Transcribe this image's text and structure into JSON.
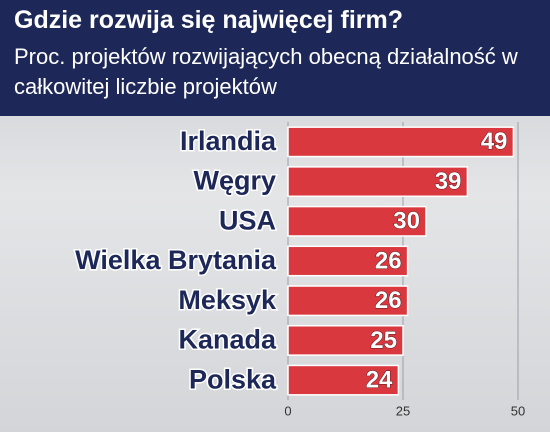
{
  "chart_data": {
    "type": "bar",
    "orientation": "horizontal",
    "title": "Gdzie rozwija się najwięcej firm?",
    "subtitle": "Proc. projektów rozwijających obecną działalność w całkowitej liczbie projektów",
    "categories": [
      "Irlandia",
      "Węgry",
      "USA",
      "Wielka Brytania",
      "Meksyk",
      "Kanada",
      "Polska"
    ],
    "values": [
      49,
      39,
      30,
      26,
      26,
      25,
      24
    ],
    "color": "#d9383f",
    "xlim": [
      0,
      50
    ],
    "xticks": [
      0,
      25,
      50
    ],
    "grid": true
  }
}
